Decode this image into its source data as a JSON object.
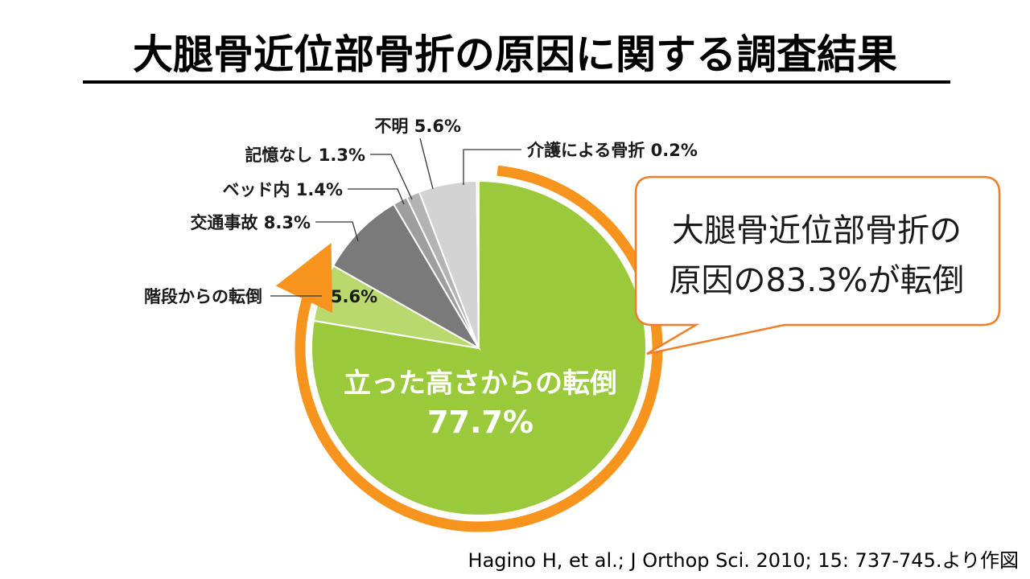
{
  "slide": {
    "title": "大腿骨近位部骨折の原因に関する調査結果",
    "citation": "Hagino H, et al.; J Orthop  Sci. 2010; 15: 737-745.より作図",
    "callout_line1": "大腿骨近位部骨折の",
    "callout_line2": "原因の83.3%が転倒"
  },
  "chart_data": {
    "type": "pie",
    "title": "",
    "start": "12 o'clock",
    "direction": "clockwise",
    "slices": [
      {
        "label": "立った高さからの転倒",
        "value": 77.7,
        "value_text": "77.7%",
        "color": "#9ACA3C"
      },
      {
        "label": "階段からの転倒",
        "value": 5.6,
        "value_text": "5.6%",
        "color": "#B9D86E"
      },
      {
        "label": "交通事故",
        "value": 8.3,
        "value_text": "8.3%",
        "color": "#7A7A7A"
      },
      {
        "label": "ベッド内",
        "value": 1.4,
        "value_text": "1.4%",
        "color": "#9E9E9E"
      },
      {
        "label": "記憶なし",
        "value": 1.3,
        "value_text": "1.3%",
        "color": "#B3B3B3"
      },
      {
        "label": "不明",
        "value": 5.6,
        "value_text": "5.6%",
        "color": "#D3D3D3"
      },
      {
        "label": "介護による骨折",
        "value": 0.2,
        "value_text": "0.2%",
        "color": "#E6E6E6"
      }
    ],
    "highlight": {
      "label": "転倒",
      "percent": 83.3,
      "color": "#F7941D"
    }
  }
}
